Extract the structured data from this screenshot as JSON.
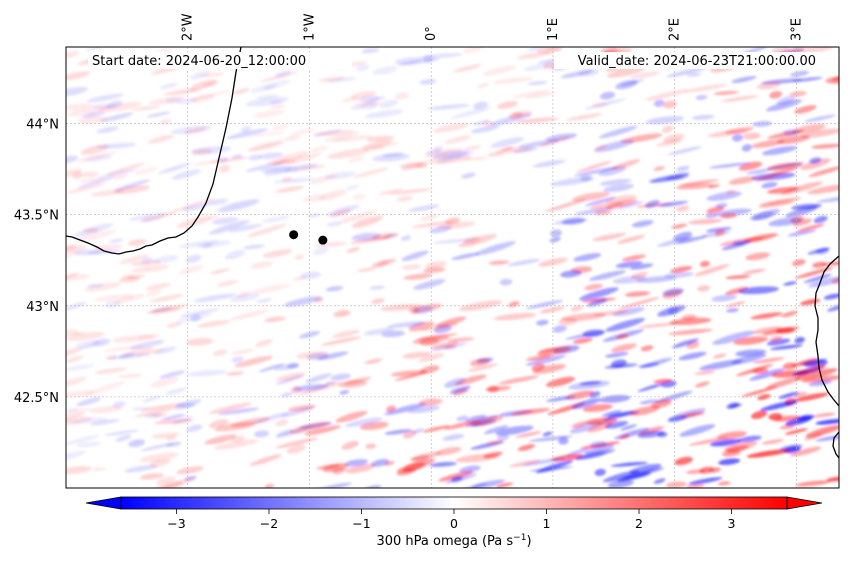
{
  "map": {
    "start_date_label": "Start date: 2024-06-20_12:00:00",
    "valid_date_label": "Valid_date: 2024-06-23T21:00:00.00",
    "lon_ticks": [
      "2°W",
      "1°W",
      "0°",
      "1°E",
      "2°E",
      "3°E"
    ],
    "lon_values": [
      -2,
      -1,
      0,
      1,
      2,
      3
    ],
    "lat_ticks": [
      "44°N",
      "43.5°N",
      "43°N",
      "42.5°N"
    ],
    "lat_values": [
      44,
      43.5,
      43,
      42.5
    ],
    "extent": {
      "lon_min": -3.0,
      "lon_max": 3.35,
      "lat_min": 42.0,
      "lat_max": 44.42
    },
    "points": [
      {
        "lon": -1.13,
        "lat": 43.39
      },
      {
        "lon": -0.89,
        "lat": 43.36
      }
    ],
    "field": "300 hPa omega",
    "colors": {
      "negative": "#0000ff",
      "zero": "#ffffff",
      "positive": "#ff0000",
      "coast": "#000000",
      "grid": "#b0b0b0",
      "marker": "#000000"
    }
  },
  "colorbar": {
    "label_main": "300 hPa omega (Pa s",
    "label_exp": "−1",
    "label_end": ")",
    "ticks": [
      "−3",
      "−2",
      "−1",
      "0",
      "1",
      "2",
      "3"
    ],
    "tick_values": [
      -3,
      -2,
      -1,
      0,
      1,
      2,
      3
    ],
    "range": [
      -3.6,
      3.6
    ],
    "extend": "both"
  }
}
